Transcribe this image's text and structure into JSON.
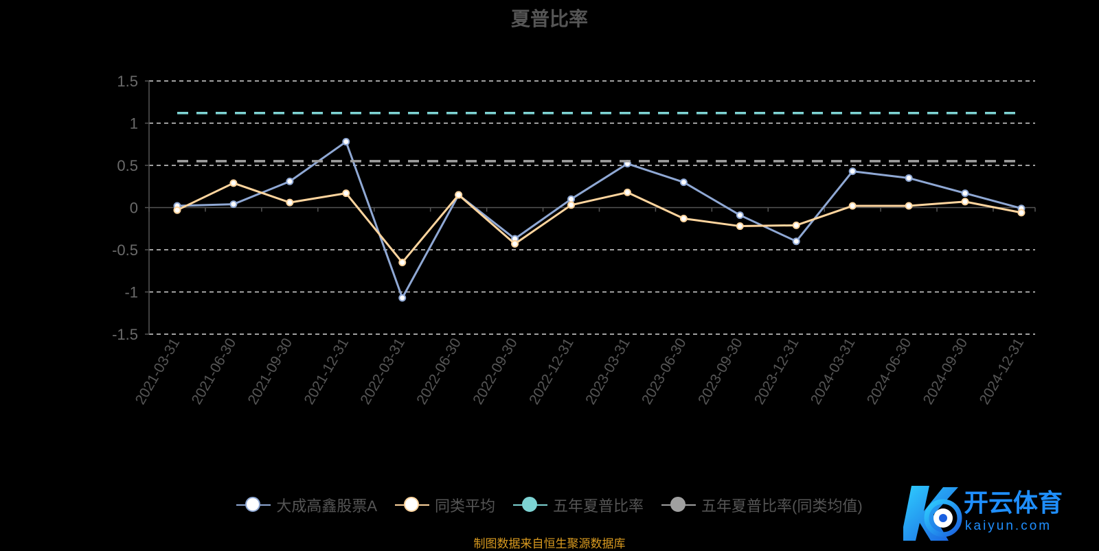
{
  "chart_data": {
    "type": "line",
    "title": "夏普比率",
    "categories": [
      "2021-03-31",
      "2021-06-30",
      "2021-09-30",
      "2021-12-31",
      "2022-03-31",
      "2022-06-30",
      "2022-09-30",
      "2022-12-31",
      "2023-03-31",
      "2023-06-30",
      "2023-09-30",
      "2023-12-31",
      "2024-03-31",
      "2024-06-30",
      "2024-09-30",
      "2024-12-31"
    ],
    "ylim": [
      -1.5,
      1.5
    ],
    "yticks": [
      "1.5",
      "1",
      "0.5",
      "0",
      "-0.5",
      "-1",
      "-1.5"
    ],
    "grid": true,
    "legend_position": "bottom",
    "series": [
      {
        "name": "大成高鑫股票A",
        "color": "#8fa8d4",
        "style": "solid",
        "values": [
          0.02,
          0.04,
          0.31,
          0.78,
          -1.07,
          0.15,
          -0.37,
          0.1,
          0.52,
          0.3,
          -0.09,
          -0.4,
          0.43,
          0.35,
          0.17,
          -0.01
        ]
      },
      {
        "name": "同类平均",
        "color": "#ffd59e",
        "style": "solid",
        "values": [
          -0.03,
          0.29,
          0.06,
          0.17,
          -0.65,
          0.15,
          -0.43,
          0.03,
          0.18,
          -0.13,
          -0.22,
          -0.21,
          0.02,
          0.02,
          0.07,
          -0.06
        ]
      },
      {
        "name": "五年夏普比率",
        "color": "#7dd3d3",
        "style": "dashed",
        "values": [
          1.12,
          1.12,
          1.12,
          1.12,
          1.12,
          1.12,
          1.12,
          1.12,
          1.12,
          1.12,
          1.12,
          1.12,
          1.12,
          1.12,
          1.12,
          1.12
        ]
      },
      {
        "name": "五年夏普比率(同类均值)",
        "color": "#a0a0a0",
        "style": "dashed",
        "values": [
          0.55,
          0.55,
          0.55,
          0.55,
          0.55,
          0.55,
          0.55,
          0.55,
          0.55,
          0.55,
          0.55,
          0.55,
          0.55,
          0.55,
          0.55,
          0.55
        ]
      }
    ]
  },
  "source_note": "制图数据来自恒生聚源数据库",
  "watermark": {
    "brand": "开云体育",
    "url": "kaiyun.com"
  }
}
